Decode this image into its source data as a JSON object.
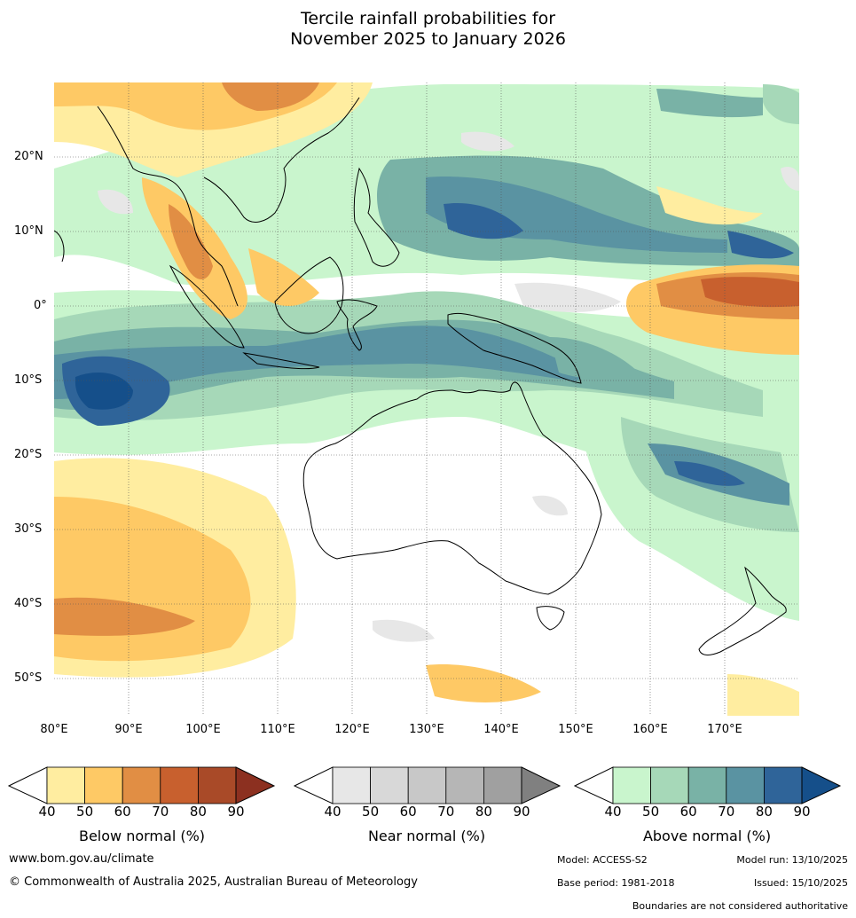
{
  "title": {
    "line1": "Tercile rainfall probabilities for",
    "line2": "November 2025 to January 2026"
  },
  "map": {
    "lat_labels": [
      "20°N",
      "10°N",
      "0°",
      "10°S",
      "20°S",
      "30°S",
      "40°S",
      "50°S"
    ],
    "lon_labels": [
      "80°E",
      "90°E",
      "100°E",
      "110°E",
      "120°E",
      "130°E",
      "140°E",
      "150°E",
      "160°E",
      "170°E"
    ]
  },
  "legends": [
    {
      "title": "Below normal (%)",
      "ticks": [
        "40",
        "50",
        "60",
        "70",
        "80",
        "90"
      ],
      "colors": [
        "#ffffff",
        "#ffeda0",
        "#fec965",
        "#e18e44",
        "#c8602e",
        "#a94a28",
        "#8c3020"
      ]
    },
    {
      "title": "Near normal (%)",
      "ticks": [
        "40",
        "50",
        "60",
        "70",
        "80",
        "90"
      ],
      "colors": [
        "#ffffff",
        "#e7e7e7",
        "#d8d8d8",
        "#c8c8c8",
        "#b6b6b6",
        "#a0a0a0",
        "#808080"
      ]
    },
    {
      "title": "Above normal (%)",
      "ticks": [
        "40",
        "50",
        "60",
        "70",
        "80",
        "90"
      ],
      "colors": [
        "#ffffff",
        "#c9f5cd",
        "#a6d8b8",
        "#79b2a6",
        "#5a93a2",
        "#2f6499",
        "#154f8a"
      ]
    }
  ],
  "footer": {
    "website": "www.bom.gov.au/climate",
    "copyright": "© Commonwealth of Australia 2025, Australian Bureau of Meteorology",
    "model": "Model: ACCESS-S2",
    "model_run": "Model run: 13/10/2025",
    "base_period": "Base period: 1981-2018",
    "issued": "Issued: 15/10/2025",
    "boundaries": "Boundaries are not considered authoritative"
  }
}
